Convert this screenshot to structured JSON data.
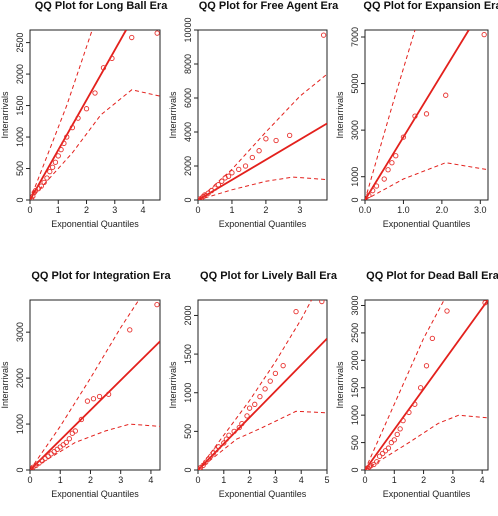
{
  "figure": {
    "point_color": "#e8322f",
    "line_color": "#e3201c",
    "axis_color": "#222222"
  },
  "chart_data": [
    {
      "type": "scatter",
      "title": "QQ Plot for Long Ball Era",
      "xlabel": "Exponential Quantiles",
      "ylabel": "Interarrivals",
      "xlim": [
        0,
        4.6
      ],
      "ylim": [
        0,
        2700
      ],
      "xticks": [
        0,
        1,
        2,
        3,
        4
      ],
      "yticks": [
        0,
        500,
        1000,
        1500,
        2000,
        2500
      ],
      "points": [
        [
          0.05,
          20
        ],
        [
          0.1,
          60
        ],
        [
          0.15,
          120
        ],
        [
          0.2,
          150
        ],
        [
          0.3,
          180
        ],
        [
          0.4,
          220
        ],
        [
          0.5,
          280
        ],
        [
          0.6,
          350
        ],
        [
          0.7,
          450
        ],
        [
          0.8,
          520
        ],
        [
          0.9,
          600
        ],
        [
          1.0,
          700
        ],
        [
          1.1,
          800
        ],
        [
          1.2,
          900
        ],
        [
          1.3,
          1000
        ],
        [
          1.5,
          1150
        ],
        [
          1.7,
          1300
        ],
        [
          2.0,
          1450
        ],
        [
          2.3,
          1700
        ],
        [
          2.6,
          2100
        ],
        [
          2.9,
          2250
        ],
        [
          3.6,
          2580
        ],
        [
          4.5,
          2650
        ]
      ],
      "fit_line": [
        [
          0,
          0
        ],
        [
          3.4,
          2700
        ]
      ],
      "envelope_upper": [
        [
          0,
          0
        ],
        [
          1.3,
          1500
        ],
        [
          2.2,
          2700
        ]
      ],
      "envelope_lower": [
        [
          0,
          0
        ],
        [
          1.5,
          750
        ],
        [
          2.5,
          1350
        ],
        [
          3.6,
          1750
        ],
        [
          4.6,
          1650
        ]
      ]
    },
    {
      "type": "scatter",
      "title": "QQ Plot for Free Agent Era",
      "xlabel": "Exponential Quantiles",
      "ylabel": "Interarrivals",
      "xlim": [
        0,
        3.8
      ],
      "ylim": [
        0,
        10000
      ],
      "xticks": [
        0,
        1,
        2,
        3
      ],
      "yticks": [
        0,
        2000,
        4000,
        6000,
        8000,
        10000
      ],
      "points": [
        [
          0.05,
          50
        ],
        [
          0.1,
          100
        ],
        [
          0.15,
          200
        ],
        [
          0.2,
          300
        ],
        [
          0.3,
          400
        ],
        [
          0.4,
          550
        ],
        [
          0.5,
          700
        ],
        [
          0.6,
          900
        ],
        [
          0.7,
          1100
        ],
        [
          0.8,
          1300
        ],
        [
          0.9,
          1400
        ],
        [
          1.0,
          1600
        ],
        [
          1.2,
          1800
        ],
        [
          1.4,
          2000
        ],
        [
          1.6,
          2500
        ],
        [
          1.8,
          2900
        ],
        [
          2.0,
          3600
        ],
        [
          2.3,
          3500
        ],
        [
          2.7,
          3800
        ],
        [
          3.7,
          9700
        ]
      ],
      "fit_line": [
        [
          0,
          0
        ],
        [
          3.8,
          4500
        ]
      ],
      "envelope_upper": [
        [
          0,
          0
        ],
        [
          1.0,
          1800
        ],
        [
          2.0,
          4000
        ],
        [
          3.0,
          6100
        ],
        [
          3.8,
          7400
        ]
      ],
      "envelope_lower": [
        [
          0,
          0
        ],
        [
          1.0,
          600
        ],
        [
          2.0,
          1100
        ],
        [
          2.8,
          1350
        ],
        [
          3.8,
          1200
        ]
      ]
    },
    {
      "type": "scatter",
      "title": "QQ Plot for Expansion Era",
      "xlabel": "Exponential Quantiles",
      "ylabel": "Interarrivals",
      "xlim": [
        0,
        3.2
      ],
      "ylim": [
        0,
        7300
      ],
      "xticks": [
        0.0,
        1.0,
        2.0,
        3.0
      ],
      "yticks": [
        0,
        1000,
        3000,
        5000,
        7000
      ],
      "points": [
        [
          0.1,
          200
        ],
        [
          0.2,
          400
        ],
        [
          0.3,
          600
        ],
        [
          0.5,
          900
        ],
        [
          0.6,
          1300
        ],
        [
          0.7,
          1600
        ],
        [
          0.8,
          1900
        ],
        [
          1.0,
          2700
        ],
        [
          1.3,
          3600
        ],
        [
          1.6,
          3700
        ],
        [
          2.1,
          4500
        ],
        [
          3.1,
          7100
        ]
      ],
      "fit_line": [
        [
          0,
          0
        ],
        [
          2.7,
          7300
        ]
      ],
      "envelope_upper": [
        [
          0,
          0
        ],
        [
          0.7,
          4000
        ],
        [
          1.3,
          7300
        ]
      ],
      "envelope_lower": [
        [
          0,
          0
        ],
        [
          1.0,
          900
        ],
        [
          2.1,
          1600
        ],
        [
          3.2,
          1300
        ]
      ]
    },
    {
      "type": "scatter",
      "title": "QQ Plot for Integration Era",
      "xlabel": "Exponential Quantiles",
      "ylabel": "Interarrivals",
      "xlim": [
        0,
        4.3
      ],
      "ylim": [
        0,
        3700
      ],
      "xticks": [
        0,
        1,
        2,
        3,
        4
      ],
      "yticks": [
        0,
        1000,
        2000,
        3000
      ],
      "points": [
        [
          0.05,
          30
        ],
        [
          0.1,
          60
        ],
        [
          0.2,
          100
        ],
        [
          0.3,
          150
        ],
        [
          0.4,
          200
        ],
        [
          0.5,
          250
        ],
        [
          0.6,
          300
        ],
        [
          0.7,
          350
        ],
        [
          0.8,
          400
        ],
        [
          0.9,
          450
        ],
        [
          1.0,
          500
        ],
        [
          1.1,
          550
        ],
        [
          1.2,
          600
        ],
        [
          1.3,
          680
        ],
        [
          1.4,
          800
        ],
        [
          1.5,
          850
        ],
        [
          1.7,
          1100
        ],
        [
          1.9,
          1500
        ],
        [
          2.1,
          1550
        ],
        [
          2.3,
          1600
        ],
        [
          2.6,
          1650
        ],
        [
          3.3,
          3050
        ],
        [
          4.2,
          3600
        ]
      ],
      "fit_line": [
        [
          0,
          0
        ],
        [
          4.3,
          2800
        ]
      ],
      "envelope_upper": [
        [
          0,
          0
        ],
        [
          1.0,
          950
        ],
        [
          2.0,
          2000
        ],
        [
          3.0,
          3100
        ],
        [
          3.6,
          3700
        ]
      ],
      "envelope_lower": [
        [
          0,
          0
        ],
        [
          1.5,
          600
        ],
        [
          2.5,
          850
        ],
        [
          3.3,
          1000
        ],
        [
          4.3,
          950
        ]
      ]
    },
    {
      "type": "scatter",
      "title": "QQ Plot for Lively Ball Era",
      "xlabel": "Exponential Quantiles",
      "ylabel": "Interarrivals",
      "xlim": [
        0,
        5
      ],
      "ylim": [
        0,
        2200
      ],
      "xticks": [
        0,
        1,
        2,
        3,
        4,
        5
      ],
      "yticks": [
        0,
        500,
        1000,
        1500,
        2000
      ],
      "points": [
        [
          0.05,
          10
        ],
        [
          0.1,
          30
        ],
        [
          0.2,
          60
        ],
        [
          0.3,
          100
        ],
        [
          0.4,
          140
        ],
        [
          0.5,
          180
        ],
        [
          0.6,
          220
        ],
        [
          0.7,
          260
        ],
        [
          0.8,
          300
        ],
        [
          1.0,
          350
        ],
        [
          1.1,
          400
        ],
        [
          1.2,
          450
        ],
        [
          1.4,
          500
        ],
        [
          1.6,
          550
        ],
        [
          1.7,
          600
        ],
        [
          1.9,
          700
        ],
        [
          2.0,
          800
        ],
        [
          2.2,
          850
        ],
        [
          2.4,
          950
        ],
        [
          2.6,
          1050
        ],
        [
          2.8,
          1150
        ],
        [
          3.0,
          1250
        ],
        [
          3.3,
          1350
        ],
        [
          3.8,
          2050
        ],
        [
          4.8,
          2180
        ]
      ],
      "fit_line": [
        [
          0,
          0
        ],
        [
          5,
          1700
        ]
      ],
      "envelope_upper": [
        [
          0,
          0
        ],
        [
          1.0,
          450
        ],
        [
          2.0,
          900
        ],
        [
          3.0,
          1400
        ],
        [
          4.0,
          1950
        ],
        [
          4.4,
          2200
        ]
      ],
      "envelope_lower": [
        [
          0,
          0
        ],
        [
          1.5,
          400
        ],
        [
          2.5,
          550
        ],
        [
          3.8,
          760
        ],
        [
          5.0,
          740
        ]
      ]
    },
    {
      "type": "scatter",
      "title": "QQ Plot for Dead Ball Era",
      "xlabel": "Exponential Quantiles",
      "ylabel": "Interarrivals",
      "xlim": [
        0,
        4.2
      ],
      "ylim": [
        0,
        3100
      ],
      "xticks": [
        0,
        1,
        2,
        3,
        4
      ],
      "yticks": [
        0,
        500,
        1000,
        1500,
        2000,
        2500,
        3000
      ],
      "points": [
        [
          0.05,
          20
        ],
        [
          0.1,
          40
        ],
        [
          0.15,
          60
        ],
        [
          0.2,
          80
        ],
        [
          0.3,
          100
        ],
        [
          0.4,
          150
        ],
        [
          0.5,
          250
        ],
        [
          0.6,
          300
        ],
        [
          0.7,
          350
        ],
        [
          0.8,
          400
        ],
        [
          0.9,
          500
        ],
        [
          1.0,
          550
        ],
        [
          1.1,
          650
        ],
        [
          1.2,
          750
        ],
        [
          1.3,
          900
        ],
        [
          1.5,
          1050
        ],
        [
          1.7,
          1200
        ],
        [
          1.9,
          1500
        ],
        [
          2.1,
          1900
        ],
        [
          2.3,
          2400
        ],
        [
          2.8,
          2900
        ],
        [
          4.1,
          3050
        ]
      ],
      "fit_line": [
        [
          0,
          0
        ],
        [
          4.2,
          3100
        ]
      ],
      "envelope_upper": [
        [
          0,
          0
        ],
        [
          1.0,
          1200
        ],
        [
          2.0,
          2400
        ],
        [
          2.7,
          3100
        ]
      ],
      "envelope_lower": [
        [
          0,
          0
        ],
        [
          1.5,
          500
        ],
        [
          2.5,
          850
        ],
        [
          3.2,
          1000
        ],
        [
          4.2,
          950
        ]
      ]
    }
  ]
}
